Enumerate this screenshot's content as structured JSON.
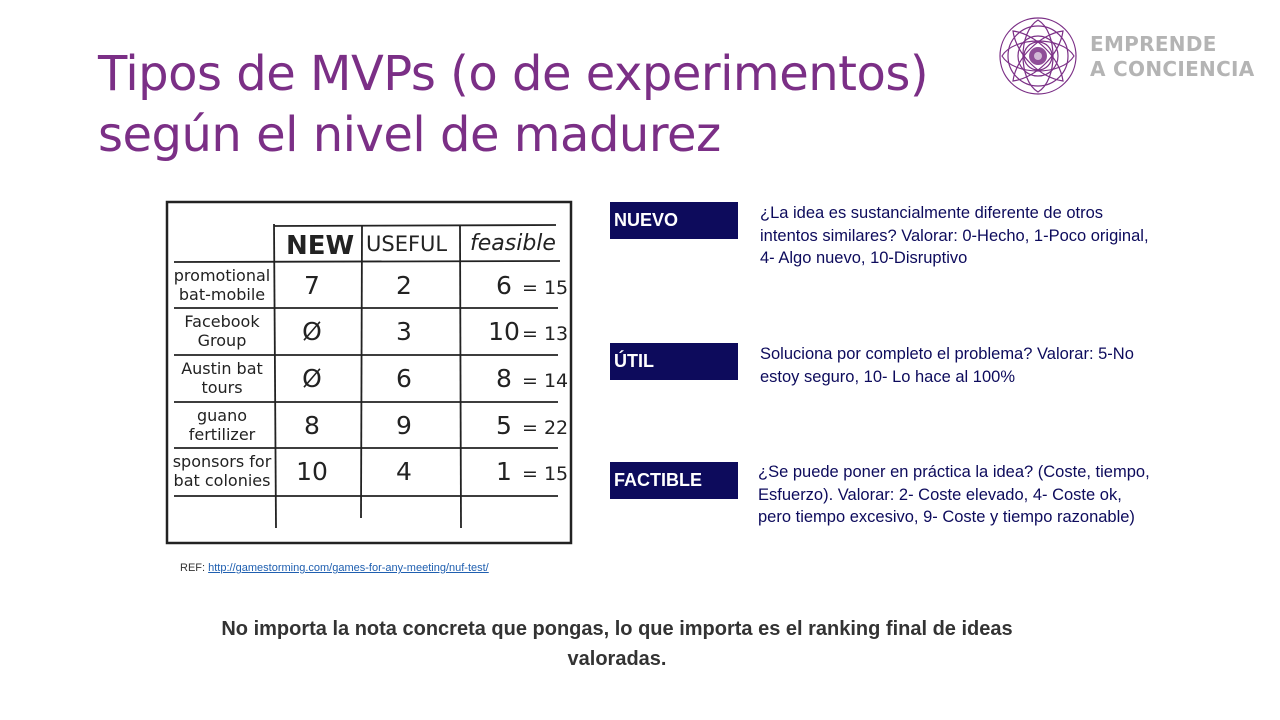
{
  "title": {
    "line1": "Tipos de MVPs (o de experimentos)",
    "line2": "según el nivel de madurez"
  },
  "logo": {
    "line1": "EMPRENDE",
    "line2": "A CONCIENCIA",
    "icon": "rose-mandala-icon",
    "color": "#7b2f86"
  },
  "sketch": {
    "headers": [
      "NEW",
      "USEFUL",
      "feasible"
    ],
    "rows": [
      {
        "label": [
          "promotional",
          "bat-mobile"
        ],
        "new": "7",
        "useful": "2",
        "feasible": "6",
        "total": "= 15"
      },
      {
        "label": [
          "Facebook",
          "Group"
        ],
        "new": "Ø",
        "useful": "3",
        "feasible": "10",
        "total": "= 13"
      },
      {
        "label": [
          "Austin bat",
          "tours"
        ],
        "new": "Ø",
        "useful": "6",
        "feasible": "8",
        "total": "= 14"
      },
      {
        "label": [
          "guano",
          "fertilizer"
        ],
        "new": "8",
        "useful": "9",
        "feasible": "5",
        "total": "= 22"
      },
      {
        "label": [
          "sponsors for",
          "bat colonies"
        ],
        "new": "10",
        "useful": "4",
        "feasible": "1",
        "total": "= 15"
      }
    ]
  },
  "ref": {
    "prefix": "REF:",
    "url": "http://gamestorming.com/games-for-any-meeting/nuf-test/"
  },
  "criteria": [
    {
      "label": "NUEVO",
      "lines": [
        "¿La idea es sustancialmente diferente de otros",
        "intentos similares? Valorar: 0-Hecho, 1-Poco original,",
        "4- Algo nuevo, 10-Disruptivo"
      ]
    },
    {
      "label": "ÚTIL",
      "lines": [
        "Soluciona por completo el problema? Valorar: 5-No",
        "estoy seguro, 10- Lo hace al 100%"
      ]
    },
    {
      "label": "FACTIBLE",
      "lines": [
        "¿Se puede poner en práctica la idea? (Coste, tiempo,",
        "Esfuerzo). Valorar: 2- Coste elevado, 4- Coste ok,",
        "pero tiempo excesivo, 9- Coste y tiempo razonable)"
      ]
    }
  ],
  "footer": {
    "line1": "No importa la nota concreta que pongas, lo que importa es el ranking final de ideas",
    "line2": "valoradas."
  },
  "colors": {
    "title": "#7b2f86",
    "label_bg": "#0d0b5c",
    "desc_text": "#0d0b5c",
    "logo_text": "#b4b4b4",
    "link": "#1f5fb0"
  }
}
